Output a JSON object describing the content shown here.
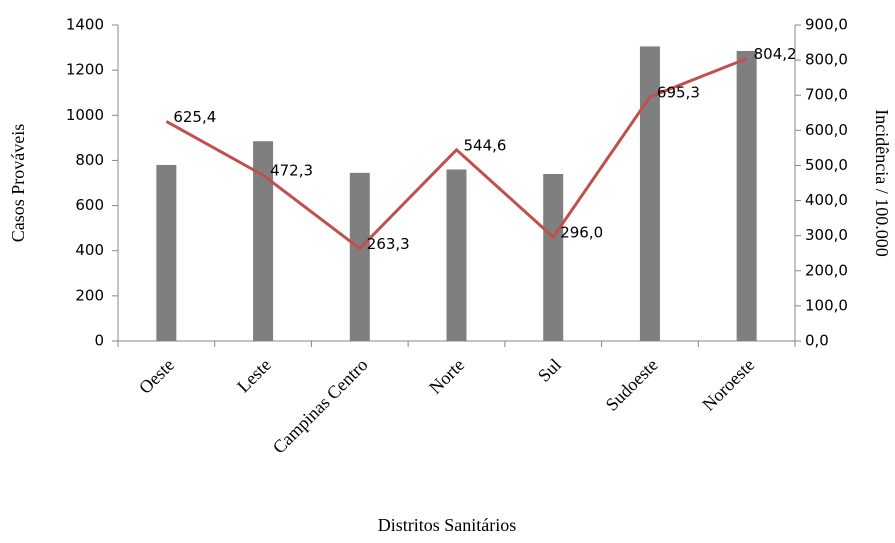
{
  "chart_data": {
    "type": "bar",
    "x_label": "Distritos Sanitários",
    "y_label": "Casos Prováveis",
    "y2_label": "Incidência / 100.000",
    "categories": [
      "Oeste",
      "Leste",
      "Campinas Centro",
      "Norte",
      "Sul",
      "Sudoeste",
      "Noroeste"
    ],
    "series": [
      {
        "type": "bar",
        "color": "#7f7f7f",
        "values": [
          780,
          885,
          745,
          760,
          740,
          1305,
          1285
        ]
      },
      {
        "type": "line",
        "axis": "y2",
        "color": "#c0504d",
        "values": [
          625.4,
          472.3,
          263.3,
          544.6,
          296.0,
          695.3,
          804.2
        ],
        "value_labels": [
          "625,4",
          "472,3",
          "263,3",
          "544,6",
          "296,0",
          "695,3",
          "804,2"
        ]
      }
    ],
    "ylim": [
      0,
      1400
    ],
    "yticks": [
      0,
      200,
      400,
      600,
      800,
      1000,
      1200,
      1400
    ],
    "y2lim": [
      0,
      900
    ],
    "y2ticks": [
      {
        "value": 0,
        "label": "0,0"
      },
      {
        "value": 100,
        "label": "100,0"
      },
      {
        "value": 200,
        "label": "200,0"
      },
      {
        "value": 300,
        "label": "300,0"
      },
      {
        "value": 400,
        "label": "400,0"
      },
      {
        "value": 500,
        "label": "500,0"
      },
      {
        "value": 600,
        "label": "600,0"
      },
      {
        "value": 700,
        "label": "700,0"
      },
      {
        "value": 800,
        "label": "800,0"
      },
      {
        "value": 900,
        "label": "900,0"
      }
    ]
  }
}
